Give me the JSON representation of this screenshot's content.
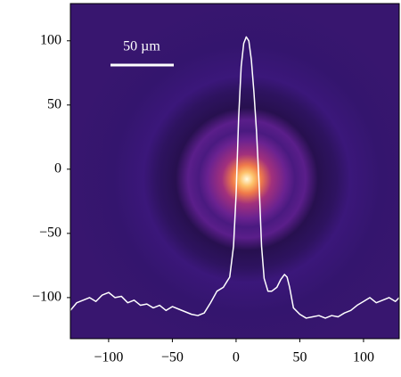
{
  "chart_data": {
    "type": "line",
    "annotation": "50 µm",
    "xlim": [
      -130,
      128
    ],
    "ylim": [
      -132,
      129
    ],
    "xticks": [
      {
        "value": -100,
        "label": "−100"
      },
      {
        "value": -50,
        "label": "−50"
      },
      0,
      50,
      100
    ],
    "yticks": [
      {
        "value": -100,
        "label": "−100"
      },
      {
        "value": -50,
        "label": "−50"
      },
      0,
      50,
      100
    ],
    "series": [
      {
        "color": "#ffffff",
        "x": [
          -130,
          -125,
          -120,
          -115,
          -110,
          -105,
          -100,
          -95,
          -90,
          -85,
          -80,
          -75,
          -70,
          -65,
          -60,
          -55,
          -50,
          -45,
          -40,
          -35,
          -30,
          -25,
          -20,
          -15,
          -10,
          -5,
          -2,
          0,
          2,
          4,
          6,
          8,
          10,
          12,
          14,
          16,
          18,
          20,
          22,
          25,
          28,
          32,
          35,
          38,
          40,
          42,
          45,
          50,
          55,
          60,
          65,
          70,
          75,
          80,
          85,
          90,
          95,
          100,
          105,
          110,
          115,
          120,
          125,
          128
        ],
        "values": [
          -110,
          -104,
          -102,
          -100,
          -103,
          -98,
          -96,
          -100,
          -99,
          -104,
          -102,
          -106,
          -105,
          -108,
          -106,
          -110,
          -107,
          -109,
          -111,
          -113,
          -114,
          -112,
          -104,
          -95,
          -92,
          -84,
          -60,
          -20,
          40,
          80,
          98,
          103,
          100,
          85,
          60,
          30,
          -10,
          -60,
          -85,
          -95,
          -95,
          -92,
          -86,
          -82,
          -84,
          -92,
          -108,
          -113,
          -116,
          -115,
          -114,
          -116,
          -114,
          -115,
          -112,
          -110,
          -106,
          -103,
          -100,
          -104,
          -102,
          -100,
          -103,
          -100
        ]
      }
    ]
  }
}
